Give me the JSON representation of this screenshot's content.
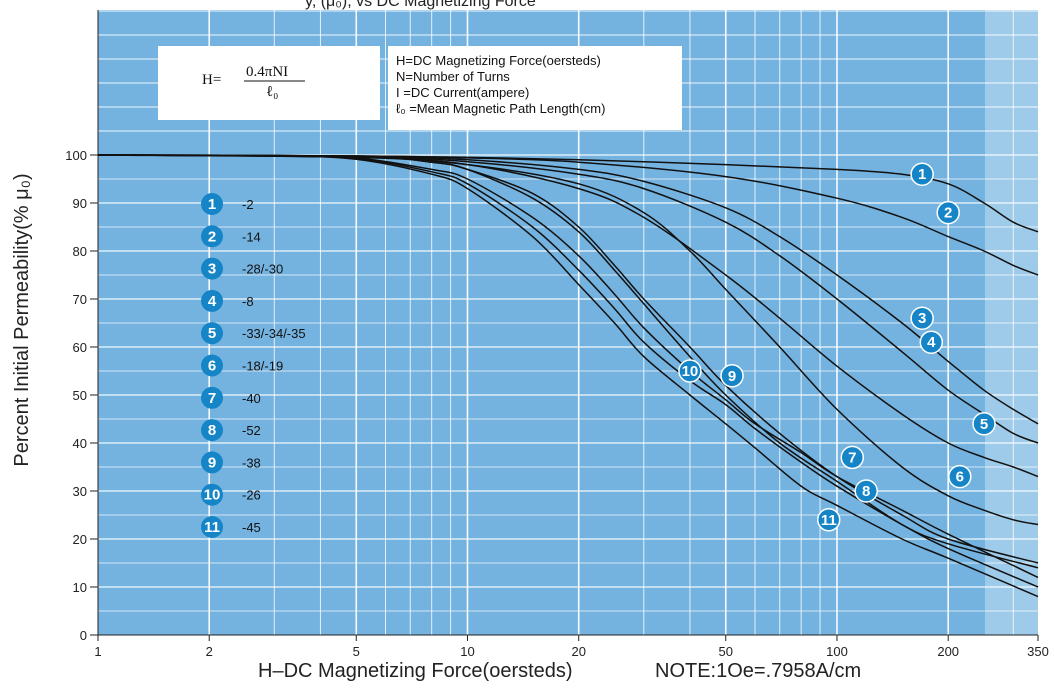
{
  "header": {
    "partial_title": "y,  (μ₀), vs  DC Magnetizing Force"
  },
  "formula": {
    "lhs": "H=",
    "numerator": "0.4πNI",
    "denominator": "ℓ₀"
  },
  "definitions": [
    "H=DC Magnetizing Force(oersteds)",
    "N=Number of Turns",
    "I  =DC Current(ampere)",
    "ℓ₀ =Mean Magnetic Path Length(cm)"
  ],
  "colors": {
    "plot_bg": "#74b3e0",
    "curve": "#111111",
    "grid": "#ffffff",
    "badge": "#1585c8",
    "right_band": "#9fcbea"
  },
  "chart_data": {
    "type": "line",
    "title": "",
    "xlabel": "H–DC Magnetizing Force(oersteds)",
    "xnote": "NOTE:1Oe=.7958A/cm",
    "ylabel": "Percent Initial Permeability(% μ₀)",
    "xscale": "log",
    "xlim": [
      1,
      350
    ],
    "ylim": [
      0,
      100
    ],
    "xticks": [
      1,
      2,
      5,
      10,
      20,
      50,
      100,
      200,
      350
    ],
    "yticks": [
      0,
      10,
      20,
      30,
      40,
      50,
      60,
      70,
      80,
      90,
      100
    ],
    "grid": true,
    "legend_position": "left",
    "series": [
      {
        "name": "-2",
        "label": "1",
        "x": [
          1,
          5,
          10,
          20,
          50,
          100,
          150,
          200,
          250,
          300,
          350
        ],
        "y": [
          100,
          99.8,
          99.5,
          99,
          98,
          97,
          96,
          94,
          90,
          86,
          84
        ],
        "badge": [
          170,
          96
        ]
      },
      {
        "name": "-14",
        "label": "2",
        "x": [
          1,
          5,
          10,
          20,
          50,
          100,
          150,
          200,
          250,
          300,
          350
        ],
        "y": [
          100,
          99.8,
          99.4,
          98.5,
          95.5,
          91,
          87,
          83,
          80,
          77,
          75
        ],
        "badge": [
          200,
          88
        ]
      },
      {
        "name": "-28/-30",
        "label": "3",
        "x": [
          1,
          5,
          10,
          20,
          30,
          50,
          70,
          100,
          150,
          200,
          250,
          300,
          350
        ],
        "y": [
          100,
          99.8,
          99,
          97,
          94.5,
          89,
          83,
          75,
          65,
          57,
          51,
          47,
          44
        ],
        "badge": [
          170,
          66
        ]
      },
      {
        "name": "-8",
        "label": "4",
        "x": [
          1,
          5,
          10,
          20,
          30,
          50,
          70,
          100,
          150,
          200,
          250,
          300,
          350
        ],
        "y": [
          100,
          99.7,
          98.6,
          96,
          93,
          86,
          79,
          70,
          59,
          51,
          46,
          42,
          40
        ],
        "badge": [
          180,
          61
        ]
      },
      {
        "name": "-33/-34/-35",
        "label": "5",
        "x": [
          1,
          5,
          10,
          20,
          30,
          50,
          70,
          100,
          150,
          200,
          250,
          300,
          350
        ],
        "y": [
          100,
          99.6,
          98,
          93,
          87,
          75,
          66,
          56,
          46,
          40,
          37,
          35,
          33
        ],
        "badge": [
          250,
          44
        ]
      },
      {
        "name": "-18/-19",
        "label": "6",
        "x": [
          1,
          5,
          10,
          20,
          30,
          40,
          50,
          70,
          100,
          150,
          200,
          250,
          300,
          350
        ],
        "y": [
          100,
          99.5,
          98,
          94,
          88,
          80,
          72,
          60,
          47,
          35,
          29,
          26,
          24,
          23
        ],
        "badge": [
          215,
          33
        ]
      },
      {
        "name": "-40",
        "label": "7",
        "x": [
          1,
          5,
          8,
          10,
          15,
          20,
          25,
          30,
          40,
          50,
          70,
          100,
          150,
          200,
          350
        ],
        "y": [
          100,
          99.6,
          98.5,
          97,
          92,
          85,
          77,
          70,
          60,
          52,
          42,
          33,
          25,
          20,
          15
        ],
        "badge": [
          110,
          37
        ]
      },
      {
        "name": "-52",
        "label": "8",
        "x": [
          1,
          5,
          8,
          10,
          15,
          20,
          25,
          30,
          40,
          50,
          70,
          100,
          150,
          200,
          350
        ],
        "y": [
          100,
          99.6,
          98.5,
          97,
          91,
          84,
          76,
          69,
          58,
          50,
          40,
          32,
          23,
          19,
          14
        ],
        "badge": [
          120,
          30
        ]
      },
      {
        "name": "-38",
        "label": "9",
        "x": [
          1,
          3,
          5,
          8,
          10,
          15,
          20,
          25,
          30,
          40,
          50,
          60,
          80,
          100,
          150,
          200,
          350
        ],
        "y": [
          100,
          99.9,
          99.4,
          97,
          95,
          87,
          79,
          71,
          64,
          55,
          49,
          44,
          38,
          33,
          26,
          21,
          12
        ],
        "badge": [
          52,
          54
        ]
      },
      {
        "name": "-26",
        "label": "10",
        "x": [
          1,
          3,
          5,
          8,
          10,
          15,
          20,
          25,
          30,
          40,
          50,
          60,
          80,
          100,
          150,
          200,
          350
        ],
        "y": [
          100,
          99.9,
          99.3,
          96.5,
          94,
          85,
          76,
          68,
          61,
          53,
          48,
          43,
          36,
          31,
          23,
          18,
          10
        ],
        "badge": [
          40,
          55
        ]
      },
      {
        "name": "-45",
        "label": "11",
        "x": [
          1,
          3,
          5,
          8,
          10,
          15,
          20,
          25,
          30,
          40,
          50,
          60,
          80,
          100,
          150,
          200,
          350
        ],
        "y": [
          100,
          99.8,
          99.1,
          96,
          93,
          83,
          73,
          65,
          58,
          50,
          44,
          39,
          31,
          27,
          20,
          16,
          8
        ],
        "badge": [
          95,
          24
        ]
      }
    ]
  }
}
